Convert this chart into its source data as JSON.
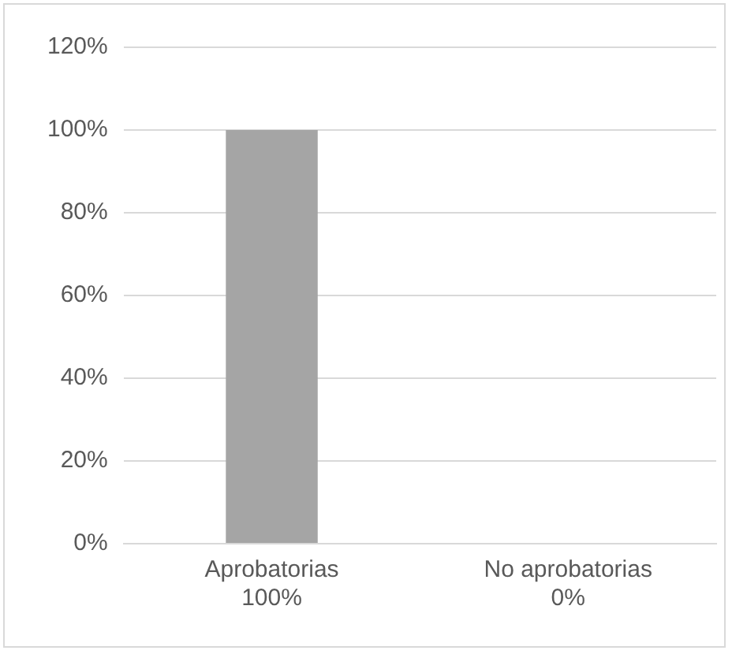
{
  "chart_data": {
    "type": "bar",
    "categories": [
      "Aprobatorias\n100%",
      "No aprobatorias\n0%"
    ],
    "values": [
      100,
      0
    ],
    "color": "#a5a5a5",
    "ylim": [
      0,
      120
    ],
    "yticks": [
      {
        "value": 0,
        "label": "0%"
      },
      {
        "value": 20,
        "label": "20%"
      },
      {
        "value": 40,
        "label": "40%"
      },
      {
        "value": 60,
        "label": "60%"
      },
      {
        "value": 80,
        "label": "80%"
      },
      {
        "value": 100,
        "label": "100%"
      },
      {
        "value": 120,
        "label": "120%"
      }
    ],
    "grid": "y",
    "legend": false
  }
}
